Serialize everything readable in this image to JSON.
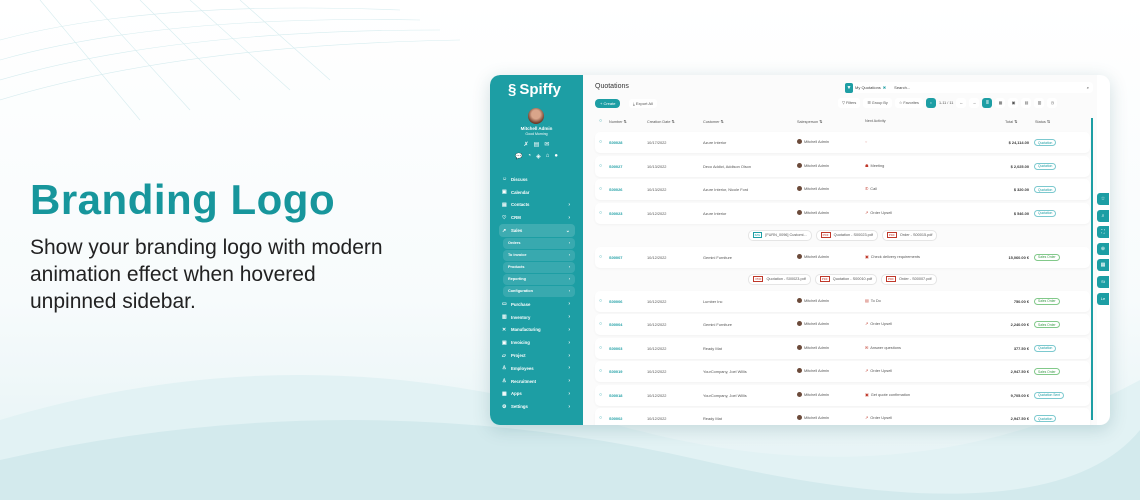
{
  "hero": {
    "title": "Branding Logo",
    "subtitle": "Show your branding logo with modern animation effect when hovered unpinned sidebar."
  },
  "colors": {
    "accent": "#1d9ea4",
    "title": "#17969c"
  },
  "sidebar": {
    "brand": "Spiffy",
    "user_name": "Mitchell Admin",
    "greeting": "Good Morning",
    "items": [
      {
        "label": "Discuss",
        "icon": "chat-icon",
        "chev": ""
      },
      {
        "label": "Calendar",
        "icon": "calendar-icon",
        "chev": ""
      },
      {
        "label": "Contacts",
        "icon": "contacts-icon",
        "chev": "›"
      },
      {
        "label": "CRM",
        "icon": "handshake-icon",
        "chev": "›"
      },
      {
        "label": "Sales",
        "icon": "chart-icon",
        "chev": "⌄"
      }
    ],
    "sales_sub": [
      {
        "label": "Orders"
      },
      {
        "label": "To invoice"
      },
      {
        "label": "Products"
      },
      {
        "label": "Reporting"
      },
      {
        "label": "Configuration"
      }
    ],
    "items2": [
      {
        "label": "Purchase",
        "icon": "cart-icon"
      },
      {
        "label": "Inventory",
        "icon": "box-icon"
      },
      {
        "label": "Manufacturing",
        "icon": "tools-icon"
      },
      {
        "label": "Invoicing",
        "icon": "invoice-icon"
      },
      {
        "label": "Project",
        "icon": "folder-icon"
      },
      {
        "label": "Employees",
        "icon": "users-icon"
      },
      {
        "label": "Recruitment",
        "icon": "user-icon"
      },
      {
        "label": "Apps",
        "icon": "grid-icon"
      },
      {
        "label": "Settings",
        "icon": "gear-icon"
      }
    ]
  },
  "main": {
    "title": "Quotations",
    "facet": "My Quotations",
    "search_placeholder": "Search...",
    "create": "+ Create",
    "export": "Export All",
    "filters": "Filters",
    "group_by": "Group By",
    "favorites": "Favorites",
    "pager": "1-11 / 11",
    "columns": {
      "number": "Number ⇅",
      "date": "Creation Date ⇅",
      "customer": "Customer ⇅",
      "salesperson": "Salesperson ⇅",
      "activity": "Next Activity",
      "total": "Total ⇅",
      "status": "Status ⇅"
    },
    "rows": [
      {
        "number": "S00028",
        "date": "10/17/2022",
        "customer": "Azure Interior",
        "salesperson": "Mitchell Admin",
        "activity": "",
        "total": "$ 24,114.00",
        "status": "Quotation"
      },
      {
        "number": "S00027",
        "date": "10/13/2022",
        "customer": "Deco Addict, Addison Olson",
        "salesperson": "Mitchell Admin",
        "activity": "Meeting",
        "total": "$ 2,025.00",
        "status": "Quotation"
      },
      {
        "number": "S00026",
        "date": "10/13/2022",
        "customer": "Azure Interior, Nicole Ford",
        "salesperson": "Mitchell Admin",
        "activity": "Call",
        "total": "$ 320.00",
        "status": "Quotation"
      },
      {
        "number": "S00023",
        "date": "10/12/2022",
        "customer": "Azure Interior",
        "salesperson": "Mitchell Admin",
        "activity": "Order Upsell",
        "total": "$ 546.00",
        "status": "Quotation"
      },
      {
        "number": "S00007",
        "date": "10/12/2022",
        "customer": "Gemini Furniture",
        "salesperson": "Mitchell Admin",
        "activity": "Check delivery requirements",
        "total": "15,060.00 €",
        "status": "Sales Order"
      },
      {
        "number": "S00006",
        "date": "10/12/2022",
        "customer": "Lumber Inc",
        "salesperson": "Mitchell Admin",
        "activity": "To Do",
        "total": "750.00 €",
        "status": "Sales Order"
      },
      {
        "number": "S00004",
        "date": "10/12/2022",
        "customer": "Gemini Furniture",
        "salesperson": "Mitchell Admin",
        "activity": "Order Upsell",
        "total": "2,240.00 €",
        "status": "Sales Order"
      },
      {
        "number": "S00003",
        "date": "10/12/2022",
        "customer": "Ready Mat",
        "salesperson": "Mitchell Admin",
        "activity": "Answer questions",
        "total": "377.50 €",
        "status": "Quotation"
      },
      {
        "number": "S00019",
        "date": "10/12/2022",
        "customer": "YourCompany, Joel Willis",
        "salesperson": "Mitchell Admin",
        "activity": "Order Upsell",
        "total": "2,947.50 €",
        "status": "Sales Order"
      },
      {
        "number": "S00018",
        "date": "10/12/2022",
        "customer": "YourCompany, Joel Willis",
        "salesperson": "Mitchell Admin",
        "activity": "Get quote confirmation",
        "total": "9,705.00 €",
        "status": "Quotation Sent"
      },
      {
        "number": "S00002",
        "date": "10/12/2022",
        "customer": "Ready Mat",
        "salesperson": "Mitchell Admin",
        "activity": "Order Upsell",
        "total": "2,947.50 €",
        "status": "Quotation"
      }
    ],
    "attachments_a": [
      "[FURN_0096] Customi...",
      "Quotation - S00023.pdf",
      "Order - S00015.pdf"
    ],
    "attachments_b": [
      "Quotation - S00023.pdf",
      "Quotation - S00010.pdf",
      "Order - S00007.pdf"
    ]
  },
  "side_buttons": [
    "St",
    "Le"
  ]
}
